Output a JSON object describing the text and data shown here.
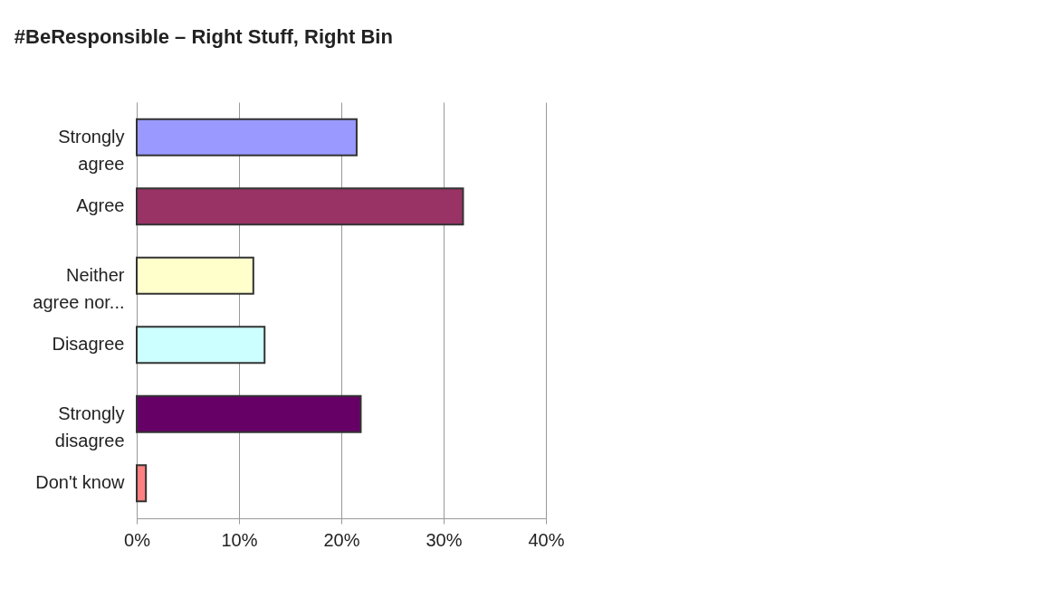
{
  "chart_data": {
    "type": "bar",
    "orientation": "horizontal",
    "title": "#BeResponsible – Right Stuff, Right Bin",
    "categories": [
      "Strongly agree",
      "Agree",
      "Neither agree nor...",
      "Disagree",
      "Strongly disagree",
      "Don't know"
    ],
    "values": [
      21.5,
      31.9,
      11.4,
      12.5,
      21.9,
      0.9
    ],
    "colors": [
      "#9999ff",
      "#993366",
      "#ffffcc",
      "#ccffff",
      "#660066",
      "#ff8080"
    ],
    "xlim": [
      0,
      40
    ],
    "xticks": [
      {
        "value": 0,
        "label": "0%"
      },
      {
        "value": 10,
        "label": "10%"
      },
      {
        "value": 20,
        "label": "20%"
      },
      {
        "value": 30,
        "label": "30%"
      },
      {
        "value": 40,
        "label": "40%"
      }
    ],
    "grid": "x"
  }
}
